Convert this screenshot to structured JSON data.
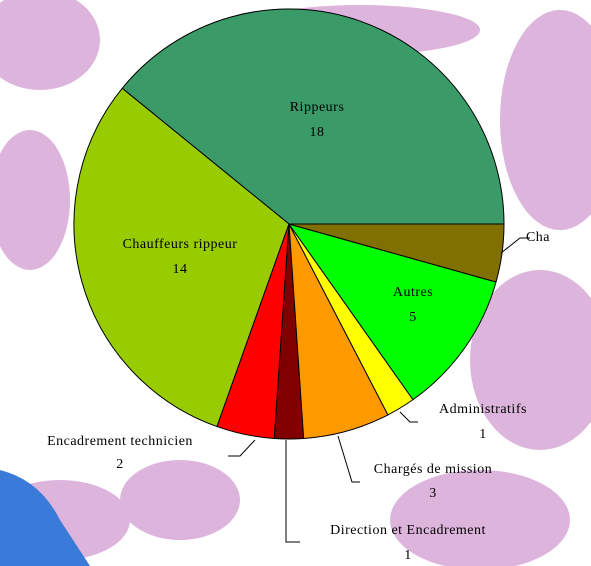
{
  "chart_data": {
    "type": "pie",
    "categories": [
      "Rippeurs",
      "Chauffeurs rippeur",
      "Encadrement technicien",
      "Direction et Encadrement",
      "Chargés de mission",
      "Administratifs",
      "Autres",
      "Cha"
    ],
    "values": [
      18,
      14,
      2,
      1,
      3,
      1,
      5,
      2
    ],
    "colors": [
      "#3a9a68",
      "#99cc00",
      "#ff0000",
      "#800000",
      "#ff9900",
      "#ffff00",
      "#00ff00",
      "#807000"
    ]
  }
}
